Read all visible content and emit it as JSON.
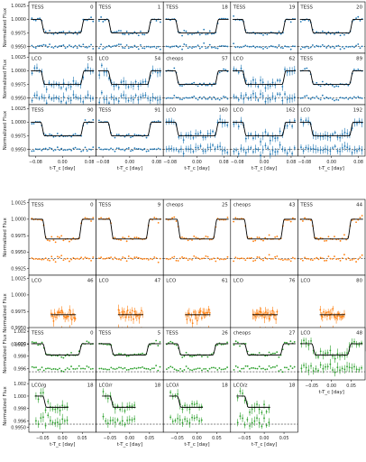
{
  "chart_data": [
    {
      "type": "scatter",
      "ylabel": "Normalized Flux",
      "xlabel": "t-T_c [day]",
      "colors": {
        "data": "#1f77b4",
        "model": "#000000"
      },
      "cols": 5,
      "xlim": [
        -0.1,
        0.1
      ],
      "xticks": [
        -0.08,
        0.0,
        0.08
      ],
      "xtick_labels": [
        "−0.08",
        "0.00",
        "0.08"
      ],
      "ylim": [
        0.9938,
        1.0032
      ],
      "yticks": [
        1.0025,
        1.0,
        0.9975,
        0.995
      ],
      "ytick_labels": [
        "1.0025",
        "1.0000",
        "0.9975",
        "0.9950"
      ],
      "reference_line": 0.995,
      "transit": {
        "depth": 0.0025,
        "half_width": 0.065,
        "ingress": 0.012,
        "residual_offset": 0.995
      },
      "panels": [
        {
          "instrument": "TESS",
          "epoch": "0",
          "sigma": 0.0003
        },
        {
          "instrument": "TESS",
          "epoch": "1",
          "sigma": 0.0003
        },
        {
          "instrument": "TESS",
          "epoch": "18",
          "sigma": 0.0003
        },
        {
          "instrument": "TESS",
          "epoch": "19",
          "sigma": 0.0003
        },
        {
          "instrument": "TESS",
          "epoch": "20",
          "sigma": 0.0003
        },
        {
          "instrument": "LCO",
          "epoch": "51",
          "sigma": 0.0006
        },
        {
          "instrument": "LCO",
          "epoch": "54",
          "sigma": 0.0006
        },
        {
          "instrument": "cheops",
          "epoch": "57",
          "sigma": 0.0003
        },
        {
          "instrument": "LCO",
          "epoch": "62",
          "sigma": 0.0006
        },
        {
          "instrument": "TESS",
          "epoch": "89",
          "sigma": 0.0003
        },
        {
          "instrument": "TESS",
          "epoch": "90",
          "sigma": 0.0003
        },
        {
          "instrument": "TESS",
          "epoch": "91",
          "sigma": 0.0003
        },
        {
          "instrument": "LCO",
          "epoch": "160",
          "sigma": 0.0006
        },
        {
          "instrument": "LCO",
          "epoch": "162",
          "sigma": 0.0006
        },
        {
          "instrument": "LCO",
          "epoch": "192",
          "sigma": 0.0006
        }
      ]
    },
    {
      "type": "scatter",
      "ylabel": "Normalized Flux",
      "xlabel": "t-T_c [day]",
      "colors": {
        "data": "#ff7f0e",
        "model": "#000000"
      },
      "cols": 5,
      "xlim": [
        -0.1,
        0.1
      ],
      "xticks": [
        -0.08,
        0.0,
        0.08
      ],
      "xtick_labels": [
        "−0.08",
        "0.00",
        "0.08"
      ],
      "ylim": [
        0.9915,
        1.003
      ],
      "yticks": [
        1.0025,
        1.0,
        0.9975,
        0.995,
        0.9925
      ],
      "ytick_labels": [
        "1.0025",
        "1.0000",
        "0.9975",
        "0.9950",
        "0.9925"
      ],
      "reference_line": 0.994,
      "transit": {
        "depth": 0.003,
        "half_width": 0.06,
        "ingress": 0.012,
        "residual_offset": 0.994
      },
      "panels": [
        {
          "instrument": "TESS",
          "epoch": "0",
          "sigma": 0.0003
        },
        {
          "instrument": "TESS",
          "epoch": "9",
          "sigma": 0.0003
        },
        {
          "instrument": "cheops",
          "epoch": "25",
          "sigma": 0.0003
        },
        {
          "instrument": "cheops",
          "epoch": "43",
          "sigma": 0.0003
        },
        {
          "instrument": "TESS",
          "epoch": "44",
          "sigma": 0.0003
        },
        {
          "instrument": "LCO",
          "epoch": "46",
          "sigma": 0.0006
        },
        {
          "instrument": "LCO",
          "epoch": "47",
          "sigma": 0.0006
        },
        {
          "instrument": "LCO",
          "epoch": "61",
          "sigma": 0.0006
        },
        {
          "instrument": "LCO",
          "epoch": "76",
          "sigma": 0.0006
        },
        {
          "instrument": "LCO",
          "epoch": "80",
          "sigma": 0.0006
        }
      ]
    },
    {
      "type": "scatter",
      "ylabel": "Normalized Flux",
      "xlabel": "t-T_c [day]",
      "colors": {
        "data": "#2ca02c",
        "model": "#000000"
      },
      "cols": 5,
      "xlim": [
        -0.085,
        0.085
      ],
      "xticks": [
        -0.05,
        0.0,
        0.05
      ],
      "xtick_labels": [
        "−0.05",
        "0.00",
        "0.05"
      ],
      "ylim": [
        0.9942,
        1.0026
      ],
      "yticks": [
        1.002,
        1.0,
        0.998,
        0.996
      ],
      "ytick_labels": [
        "1.002",
        "1.000",
        "0.998",
        "0.996"
      ],
      "extra_ytick": {
        "value": 0.995,
        "label": "0.9950"
      },
      "reference_line": 0.9955,
      "transit": {
        "depth": 0.0018,
        "half_width": 0.05,
        "ingress": 0.01,
        "residual_offset": 0.996
      },
      "panels": [
        {
          "instrument": "TESS",
          "epoch": "0",
          "sigma": 0.0003
        },
        {
          "instrument": "TESS",
          "epoch": "5",
          "sigma": 0.0003
        },
        {
          "instrument": "TESS",
          "epoch": "26",
          "sigma": 0.0003
        },
        {
          "instrument": "cheops",
          "epoch": "27",
          "sigma": 0.0003
        },
        {
          "instrument": "LCO",
          "epoch": "48",
          "sigma": 0.0006
        },
        {
          "instrument": "LCO/g",
          "epoch": "18",
          "sigma": 0.0006
        },
        {
          "instrument": "LCO/r",
          "epoch": "18",
          "sigma": 0.0006
        },
        {
          "instrument": "LCO/i",
          "epoch": "18",
          "sigma": 0.0006
        },
        {
          "instrument": "LCO/z",
          "epoch": "18",
          "sigma": 0.0006
        }
      ]
    }
  ]
}
